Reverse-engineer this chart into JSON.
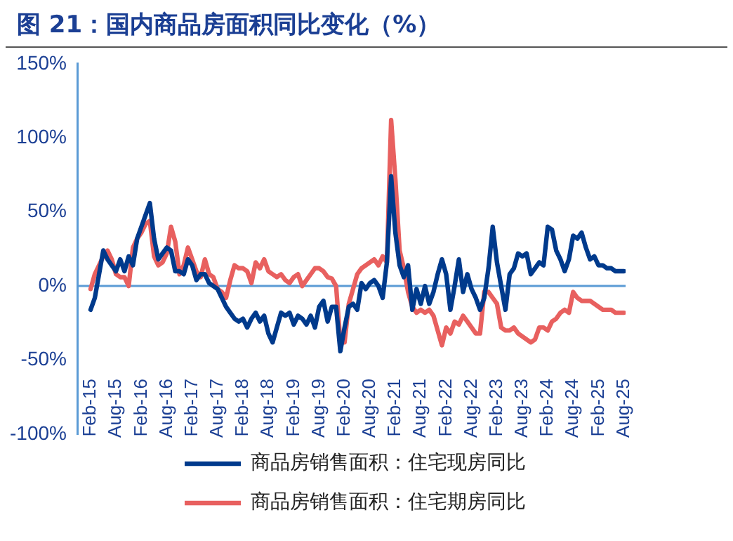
{
  "chart_data": {
    "type": "line",
    "title": "图 21：国内商品房面积同比变化（%）",
    "categories": [
      "Feb-15",
      null,
      null,
      null,
      null,
      null,
      "Aug-15",
      null,
      null,
      null,
      null,
      null,
      "Feb-16",
      null,
      null,
      null,
      null,
      null,
      "Aug-16",
      null,
      null,
      null,
      null,
      null,
      "Feb-17",
      null,
      null,
      null,
      null,
      null,
      "Aug-17",
      null,
      null,
      null,
      null,
      null,
      "Feb-18",
      null,
      null,
      null,
      null,
      null,
      "Aug-18",
      null,
      null,
      null,
      null,
      null,
      "Feb-19",
      null,
      null,
      null,
      null,
      null,
      "Aug-19",
      null,
      null,
      null,
      null,
      null,
      "Feb-20",
      null,
      null,
      null,
      null,
      null,
      "Aug-20",
      null,
      null,
      null,
      null,
      null,
      "Feb-21",
      null,
      null,
      null,
      null,
      null,
      "Aug-21",
      null,
      null,
      null,
      null,
      null,
      "Feb-22",
      null,
      null,
      null,
      null,
      null,
      "Aug-22",
      null,
      null,
      null,
      null,
      null,
      "Feb-23",
      null,
      null,
      null,
      null,
      null,
      "Aug-23",
      null,
      null,
      null,
      null,
      null,
      "Feb-24",
      null,
      null,
      null,
      null,
      null,
      "Aug-24",
      null,
      null,
      null,
      null,
      null,
      "Feb-25",
      null,
      null,
      null,
      null,
      null,
      "Aug-25"
    ],
    "series": [
      {
        "name": "商品房销售面积：住宅现房同比",
        "color": "#003a8c",
        "values": [
          -16,
          -8,
          8,
          24,
          18,
          14,
          10,
          18,
          10,
          20,
          14,
          32,
          40,
          48,
          56,
          32,
          18,
          22,
          26,
          24,
          10,
          10,
          8,
          18,
          14,
          4,
          8,
          8,
          2,
          0,
          -2,
          -8,
          -14,
          -18,
          -22,
          -24,
          -22,
          -28,
          -22,
          -18,
          -24,
          -20,
          -32,
          -38,
          -28,
          -18,
          -20,
          -18,
          -26,
          -20,
          -22,
          -26,
          -20,
          -28,
          -14,
          -10,
          -24,
          -14,
          -14,
          -44,
          -28,
          -14,
          -12,
          -16,
          2,
          -2,
          2,
          4,
          0,
          -8,
          16,
          74,
          36,
          14,
          6,
          14,
          -16,
          -2,
          -12,
          0,
          -12,
          -4,
          8,
          18,
          8,
          -16,
          0,
          18,
          -4,
          8,
          -2,
          -8,
          -16,
          -8,
          12,
          40,
          16,
          0,
          -16,
          8,
          12,
          22,
          20,
          22,
          8,
          12,
          16,
          14,
          40,
          38,
          24,
          18,
          10,
          18,
          34,
          32,
          36,
          26,
          18,
          20,
          14,
          14,
          12,
          12,
          10,
          10,
          10
        ]
      },
      {
        "name": "商品房销售面积：住宅期房同比",
        "color": "#e8605f",
        "values": [
          -2,
          8,
          14,
          20,
          24,
          18,
          8,
          6,
          6,
          0,
          26,
          32,
          36,
          42,
          44,
          20,
          14,
          16,
          22,
          40,
          30,
          8,
          14,
          26,
          18,
          10,
          6,
          18,
          8,
          6,
          -2,
          -4,
          -8,
          4,
          14,
          12,
          12,
          10,
          2,
          16,
          12,
          18,
          10,
          8,
          6,
          8,
          4,
          2,
          6,
          8,
          0,
          4,
          8,
          12,
          12,
          10,
          6,
          5,
          0,
          -38,
          -38,
          -12,
          -2,
          8,
          12,
          14,
          16,
          18,
          14,
          20,
          16,
          112,
          72,
          24,
          12,
          -4,
          -14,
          -18,
          -16,
          -18,
          -16,
          -20,
          -30,
          -40,
          -28,
          -32,
          -24,
          -26,
          -20,
          -24,
          -28,
          -32,
          -32,
          -4,
          -4,
          -8,
          -12,
          -28,
          -30,
          -30,
          -28,
          -32,
          -34,
          -36,
          -38,
          -36,
          -28,
          -28,
          -30,
          -24,
          -22,
          -18,
          -16,
          -18,
          -4,
          -8,
          -10,
          -10,
          -10,
          -12,
          -14,
          -16,
          -16,
          -16,
          -18,
          -18,
          -18
        ]
      }
    ],
    "ylim": [
      -100,
      150
    ],
    "yticks": [
      {
        "value": -100,
        "label": "-100%"
      },
      {
        "value": -50,
        "label": "-50%"
      },
      {
        "value": 0,
        "label": "0%"
      },
      {
        "value": 50,
        "label": "50%"
      },
      {
        "value": 100,
        "label": "100%"
      },
      {
        "value": 150,
        "label": "150%"
      }
    ],
    "ref_lines": [
      {
        "axis": "y",
        "value": 0,
        "color": "#5b9bd5",
        "line_style": "solid"
      }
    ],
    "grid": false,
    "legend": "bottom",
    "marker": "none",
    "line_style": "solid"
  }
}
